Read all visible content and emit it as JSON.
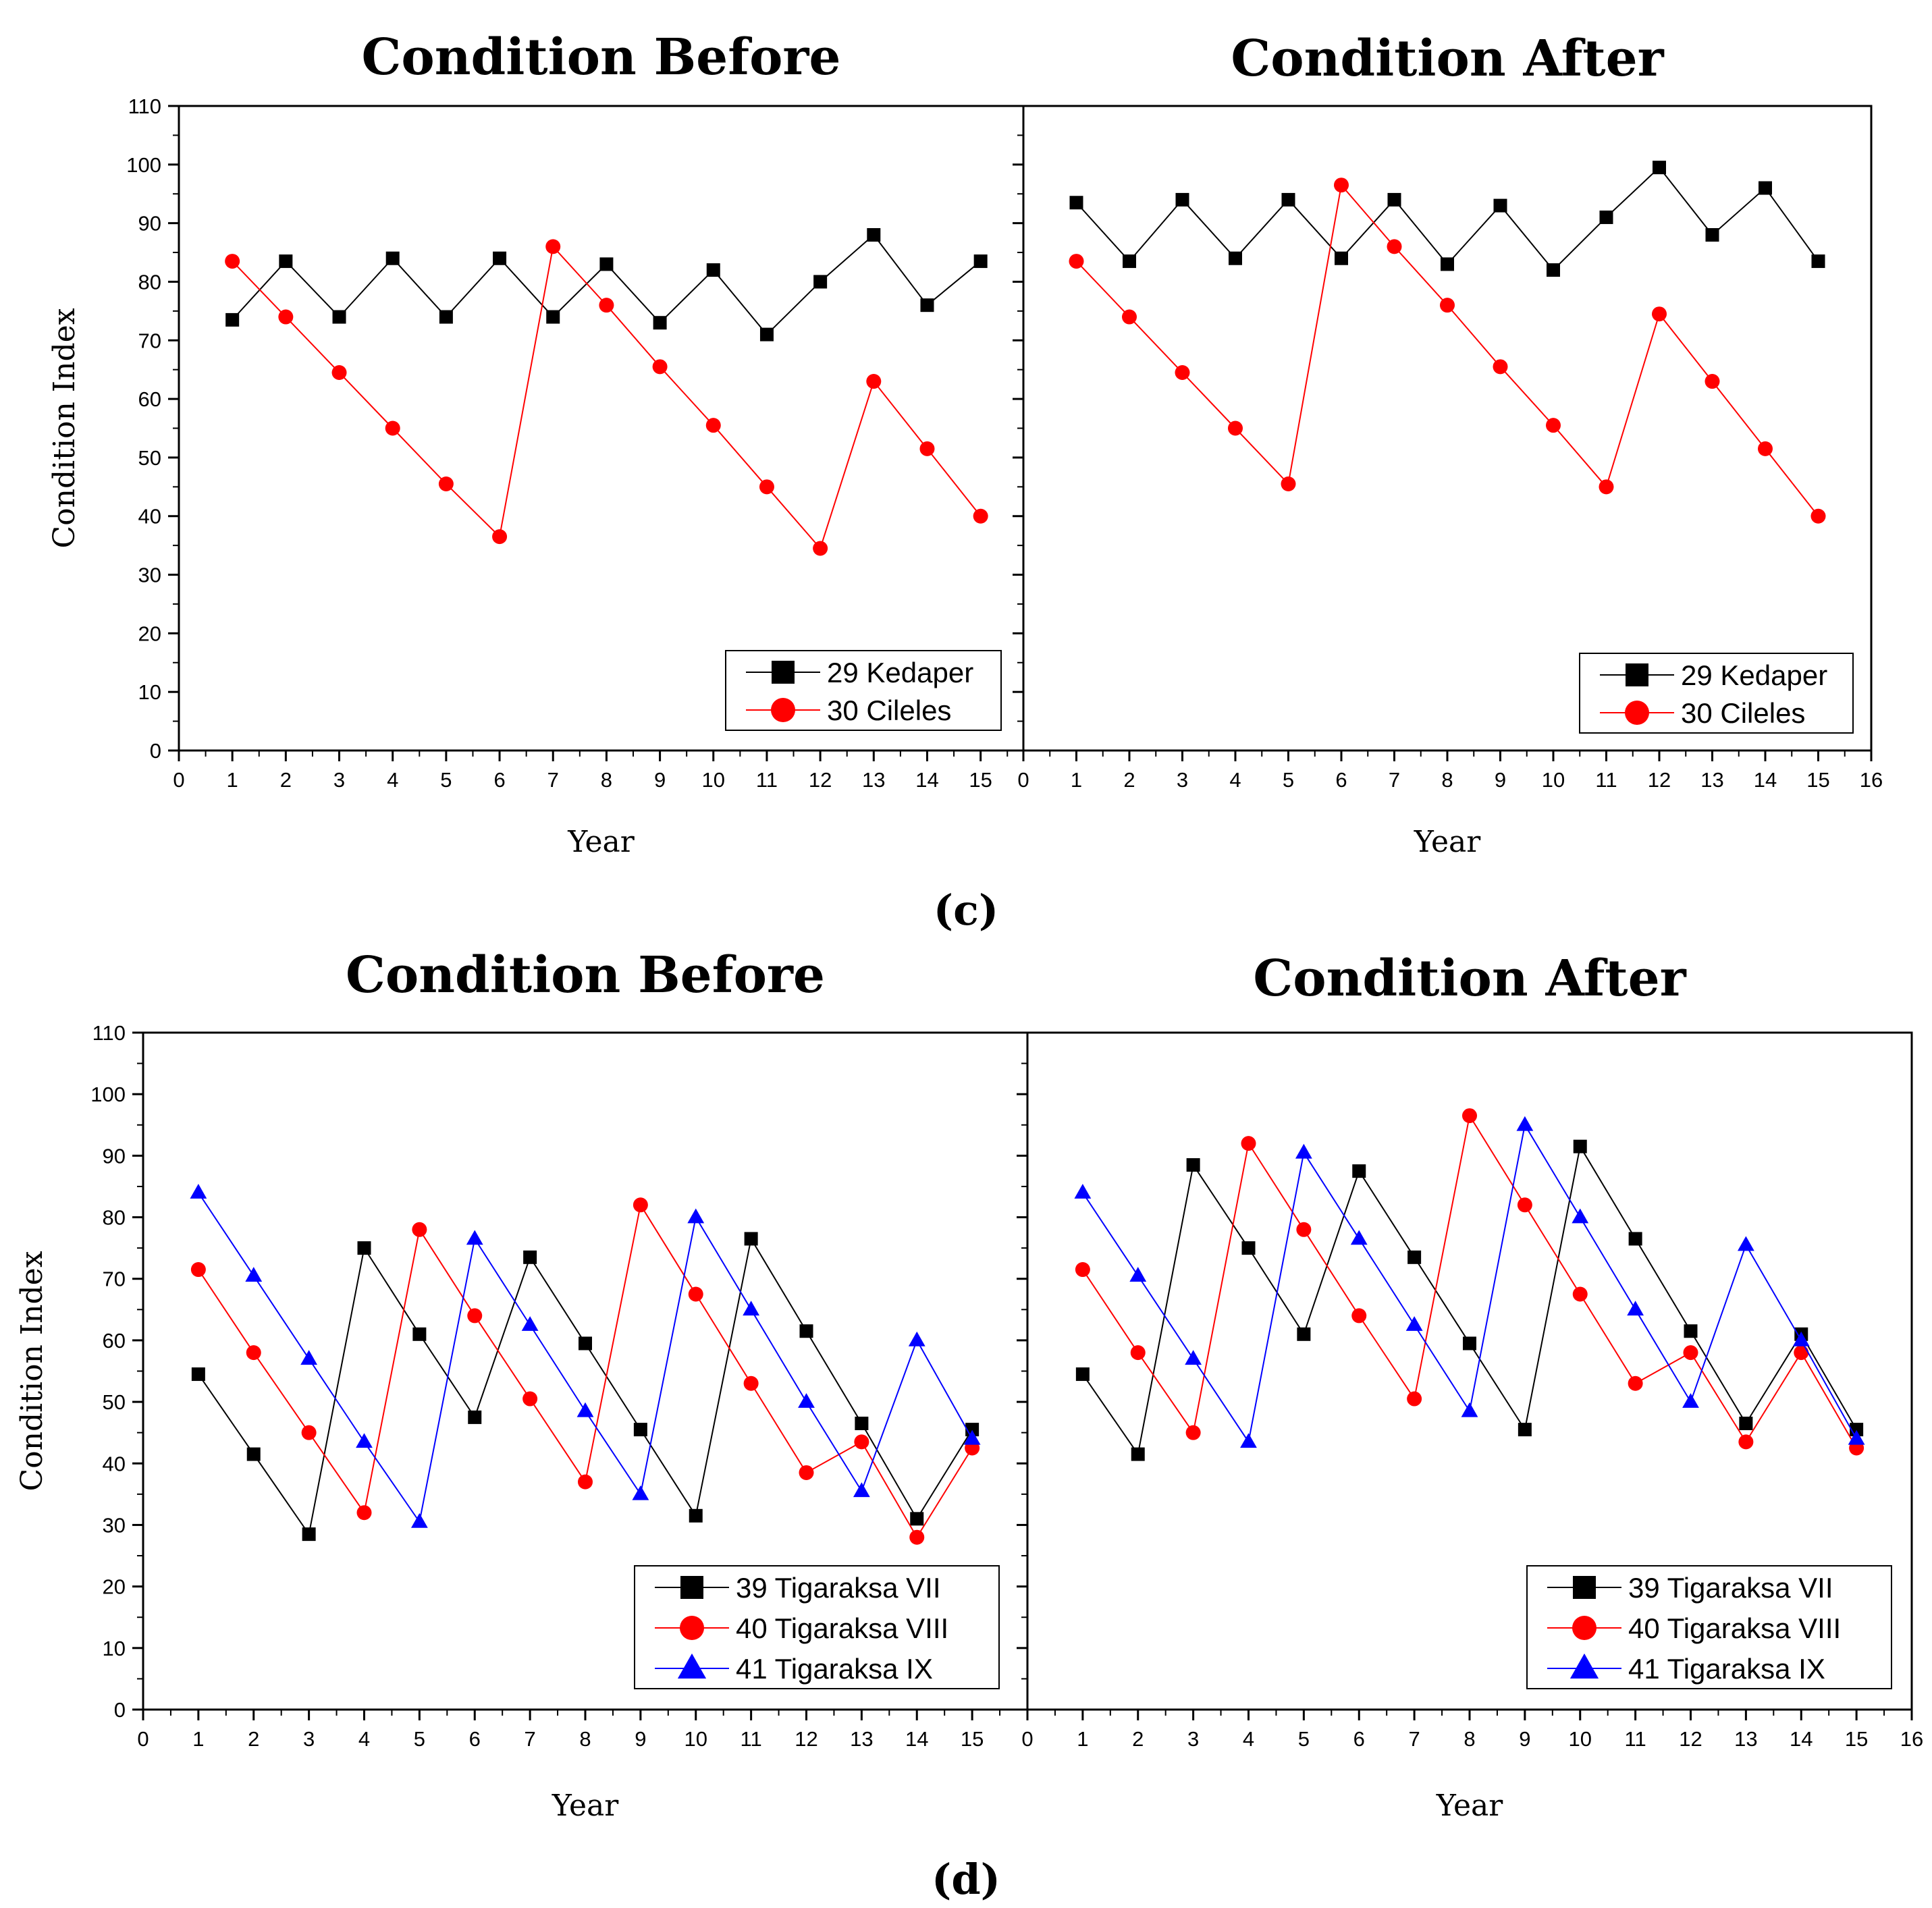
{
  "figure": {
    "panel_labels": [
      "(c)",
      "(d)"
    ]
  },
  "colors": {
    "black": "#000000",
    "red": "#ff0000",
    "blue": "#0000ff"
  },
  "chart_data": [
    {
      "type": "line",
      "group": "c",
      "side": "left",
      "title": "Condition Before",
      "xlabel": "Year",
      "ylabel": "Condition Index",
      "xlim": [
        0,
        15.8
      ],
      "ylim": [
        0,
        110
      ],
      "xticks": [
        0,
        1,
        2,
        3,
        4,
        5,
        6,
        7,
        8,
        9,
        10,
        11,
        12,
        13,
        14,
        15
      ],
      "yticks": [
        0,
        10,
        20,
        30,
        40,
        50,
        60,
        70,
        80,
        90,
        100,
        110
      ],
      "show_ylabel": true,
      "legend_position": "bottom-right",
      "series": [
        {
          "name": "29 Kedaper",
          "color": "#000000",
          "marker": "square",
          "x": [
            1,
            2,
            3,
            4,
            5,
            6,
            7,
            8,
            9,
            10,
            11,
            12,
            13,
            14,
            15
          ],
          "values": [
            73.5,
            83.5,
            74,
            84,
            74,
            84,
            74,
            83,
            73,
            82,
            71,
            80,
            88,
            76,
            83.5
          ]
        },
        {
          "name": "30 Cileles",
          "color": "#ff0000",
          "marker": "circle",
          "x": [
            1,
            2,
            3,
            4,
            5,
            6,
            7,
            8,
            9,
            10,
            11,
            12,
            13,
            14,
            15
          ],
          "values": [
            83.5,
            74,
            64.5,
            55,
            45.5,
            36.5,
            86,
            76,
            65.5,
            55.5,
            45,
            34.5,
            63,
            51.5,
            40
          ]
        }
      ]
    },
    {
      "type": "line",
      "group": "c",
      "side": "right",
      "title": "Condition After",
      "xlabel": "Year",
      "ylabel": "",
      "xlim": [
        0,
        16
      ],
      "ylim": [
        0,
        110
      ],
      "xticks": [
        0,
        1,
        2,
        3,
        4,
        5,
        6,
        7,
        8,
        9,
        10,
        11,
        12,
        13,
        14,
        15,
        16
      ],
      "yticks": [
        0,
        10,
        20,
        30,
        40,
        50,
        60,
        70,
        80,
        90,
        100,
        110
      ],
      "show_ylabel": false,
      "legend_position": "bottom-right",
      "series": [
        {
          "name": "29 Kedaper",
          "color": "#000000",
          "marker": "square",
          "x": [
            1,
            2,
            3,
            4,
            5,
            6,
            7,
            8,
            9,
            10,
            11,
            12,
            13,
            14,
            15
          ],
          "values": [
            93.5,
            83.5,
            94,
            84,
            94,
            84,
            94,
            83,
            93,
            82,
            91,
            99.5,
            88,
            96,
            83.5
          ]
        },
        {
          "name": "30 Cileles",
          "color": "#ff0000",
          "marker": "circle",
          "x": [
            1,
            2,
            3,
            4,
            5,
            6,
            7,
            8,
            9,
            10,
            11,
            12,
            13,
            14,
            15
          ],
          "values": [
            83.5,
            74,
            64.5,
            55,
            45.5,
            96.5,
            86,
            76,
            65.5,
            55.5,
            45,
            74.5,
            63,
            51.5,
            40
          ]
        }
      ]
    },
    {
      "type": "line",
      "group": "d",
      "side": "left",
      "title": "Condition Before",
      "xlabel": "Year",
      "ylabel": "Condition Index",
      "xlim": [
        0,
        16
      ],
      "ylim": [
        0,
        110
      ],
      "xticks": [
        0,
        1,
        2,
        3,
        4,
        5,
        6,
        7,
        8,
        9,
        10,
        11,
        12,
        13,
        14,
        15
      ],
      "yticks": [
        0,
        10,
        20,
        30,
        40,
        50,
        60,
        70,
        80,
        90,
        100,
        110
      ],
      "show_ylabel": true,
      "legend_position": "bottom-right",
      "series": [
        {
          "name": "39 Tigaraksa VII",
          "color": "#000000",
          "marker": "square",
          "x": [
            1,
            2,
            3,
            4,
            5,
            6,
            7,
            8,
            9,
            10,
            11,
            12,
            13,
            14,
            15
          ],
          "values": [
            54.5,
            41.5,
            28.5,
            75,
            61,
            47.5,
            73.5,
            59.5,
            45.5,
            31.5,
            76.5,
            61.5,
            46.5,
            31,
            45.5
          ]
        },
        {
          "name": "40 Tigaraksa VIII",
          "color": "#ff0000",
          "marker": "circle",
          "x": [
            1,
            2,
            3,
            4,
            5,
            6,
            7,
            8,
            9,
            10,
            11,
            12,
            13,
            14,
            15
          ],
          "values": [
            71.5,
            58,
            45,
            32,
            78,
            64,
            50.5,
            37,
            82,
            67.5,
            53,
            38.5,
            43.5,
            28,
            42.5
          ]
        },
        {
          "name": "41 Tigaraksa IX",
          "color": "#0000ff",
          "marker": "triangle",
          "x": [
            1,
            2,
            3,
            4,
            5,
            6,
            7,
            8,
            9,
            10,
            11,
            12,
            13,
            14,
            15
          ],
          "values": [
            84,
            70.5,
            57,
            43.5,
            30.5,
            76.5,
            62.5,
            48.5,
            35,
            80,
            65,
            50,
            35.5,
            60,
            44
          ]
        }
      ]
    },
    {
      "type": "line",
      "group": "d",
      "side": "right",
      "title": "Condition After",
      "xlabel": "Year",
      "ylabel": "",
      "xlim": [
        0,
        16
      ],
      "ylim": [
        0,
        110
      ],
      "xticks": [
        0,
        1,
        2,
        3,
        4,
        5,
        6,
        7,
        8,
        9,
        10,
        11,
        12,
        13,
        14,
        15,
        16
      ],
      "yticks": [
        0,
        10,
        20,
        30,
        40,
        50,
        60,
        70,
        80,
        90,
        100,
        110
      ],
      "show_ylabel": false,
      "legend_position": "bottom-right",
      "series": [
        {
          "name": "39 Tigaraksa VII",
          "color": "#000000",
          "marker": "square",
          "x": [
            1,
            2,
            3,
            4,
            5,
            6,
            7,
            8,
            9,
            10,
            11,
            12,
            13,
            14,
            15
          ],
          "values": [
            54.5,
            41.5,
            88.5,
            75,
            61,
            87.5,
            73.5,
            59.5,
            45.5,
            91.5,
            76.5,
            61.5,
            46.5,
            61,
            45.5
          ]
        },
        {
          "name": "40 Tigaraksa VIII",
          "color": "#ff0000",
          "marker": "circle",
          "x": [
            1,
            2,
            3,
            4,
            5,
            6,
            7,
            8,
            9,
            10,
            11,
            12,
            13,
            14,
            15
          ],
          "values": [
            71.5,
            58,
            45,
            92,
            78,
            64,
            50.5,
            96.5,
            82,
            67.5,
            53,
            58,
            43.5,
            58,
            42.5
          ]
        },
        {
          "name": "41 Tigaraksa IX",
          "color": "#0000ff",
          "marker": "triangle",
          "x": [
            1,
            2,
            3,
            4,
            5,
            6,
            7,
            8,
            9,
            10,
            11,
            12,
            13,
            14,
            15
          ],
          "values": [
            84,
            70.5,
            57,
            43.5,
            90.5,
            76.5,
            62.5,
            48.5,
            95,
            80,
            65,
            50,
            75.5,
            60,
            44
          ]
        }
      ]
    }
  ]
}
